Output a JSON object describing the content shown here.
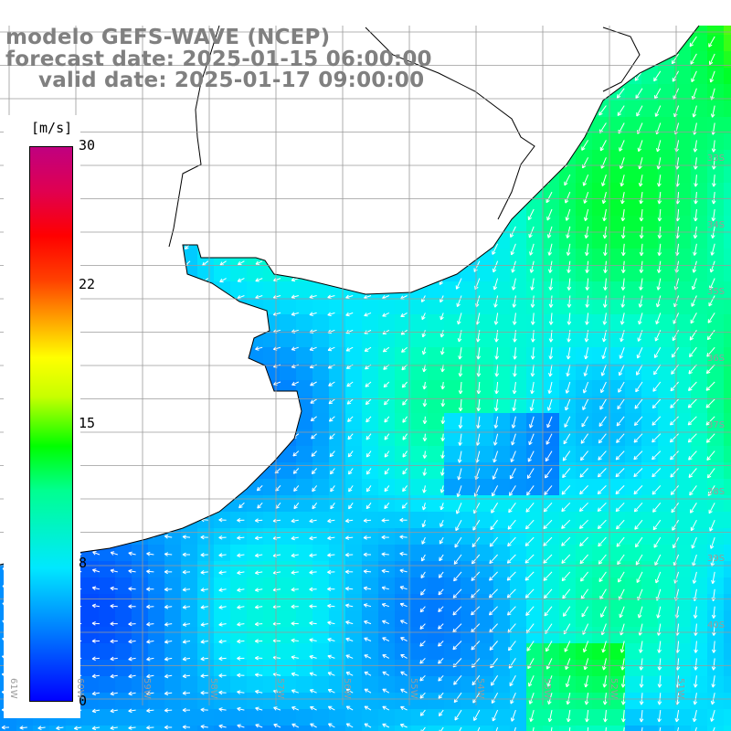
{
  "title": {
    "line1": "modelo GEFS-WAVE (NCEP)",
    "line2": "forecast date: 2025-01-15 06:00:00",
    "line3": "valid date: 2025-01-17 09:00:00"
  },
  "colorbar": {
    "unit": "[m/s]",
    "ticks": [
      "30",
      "22",
      "15",
      "8",
      "0"
    ],
    "colors": [
      "#0000ff",
      "#0080ff",
      "#00e8ff",
      "#00ff90",
      "#00ff00",
      "#ffff00",
      "#ff0000",
      "#c00080"
    ]
  },
  "map": {
    "lon_labels": [
      "61W",
      "60W",
      "59W",
      "58W",
      "57W",
      "56W",
      "55W",
      "54W",
      "53W",
      "52W",
      "51W"
    ],
    "lat_labels": [
      "33S",
      "34S",
      "35S",
      "36S",
      "37S",
      "38S",
      "39S",
      "40S"
    ],
    "land_color": "#ffffff",
    "grid_color": "#9a9a9a"
  }
}
